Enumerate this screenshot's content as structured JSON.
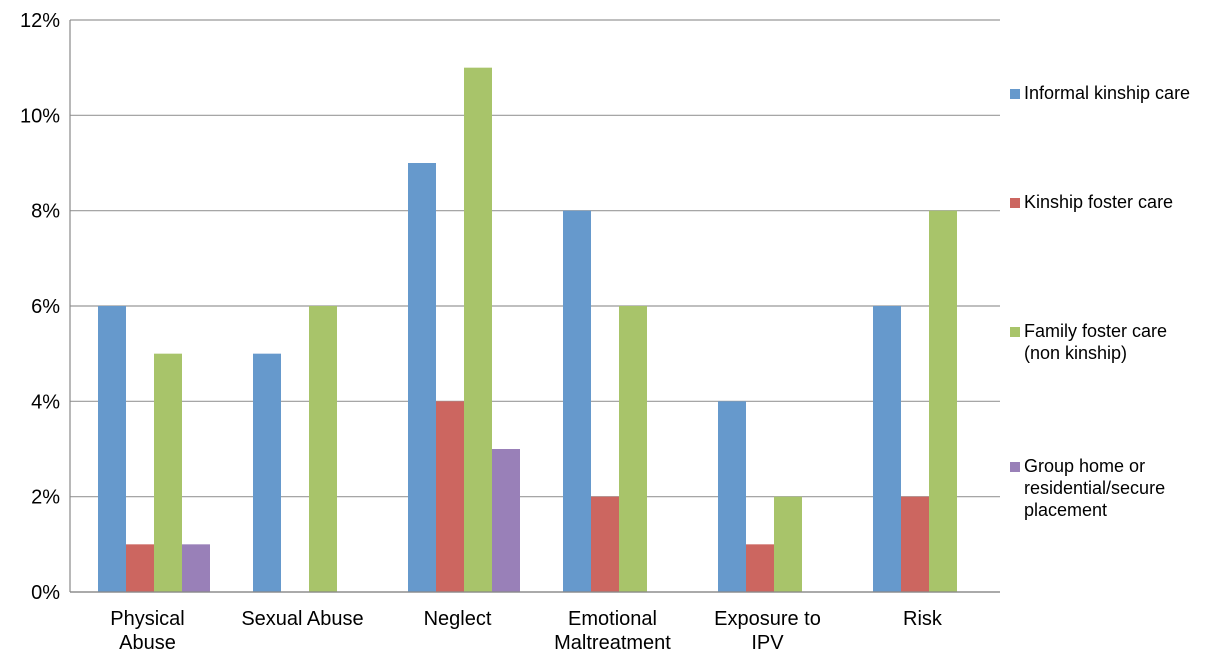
{
  "chart_data": {
    "type": "bar",
    "categories": [
      [
        "Physical",
        "Abuse"
      ],
      [
        "Sexual Abuse"
      ],
      [
        "Neglect"
      ],
      [
        "Emotional",
        "Maltreatment"
      ],
      [
        "Exposure to",
        "IPV"
      ],
      [
        "Risk"
      ]
    ],
    "series": [
      {
        "name": [
          "Informal kinship care"
        ],
        "color": "#6699cc",
        "values": [
          6,
          5,
          9,
          8,
          4,
          6
        ]
      },
      {
        "name": [
          "Kinship foster care"
        ],
        "color": "#cc6660",
        "values": [
          1,
          0,
          4,
          2,
          1,
          2
        ]
      },
      {
        "name": [
          "Family foster care",
          "(non kinship)"
        ],
        "color": "#a8c46a",
        "values": [
          5,
          6,
          11,
          6,
          2,
          8
        ]
      },
      {
        "name": [
          "Group home or",
          "residential/secure",
          "placement"
        ],
        "color": "#9980b8",
        "values": [
          1,
          0,
          3,
          0,
          0,
          0
        ]
      }
    ],
    "ylim": [
      0,
      12
    ],
    "yticks": [
      "0%",
      "2%",
      "4%",
      "6%",
      "8%",
      "10%",
      "12%"
    ],
    "ytick_values": [
      0,
      2,
      4,
      6,
      8,
      10,
      12
    ],
    "grid": true,
    "legend_position": "right"
  }
}
